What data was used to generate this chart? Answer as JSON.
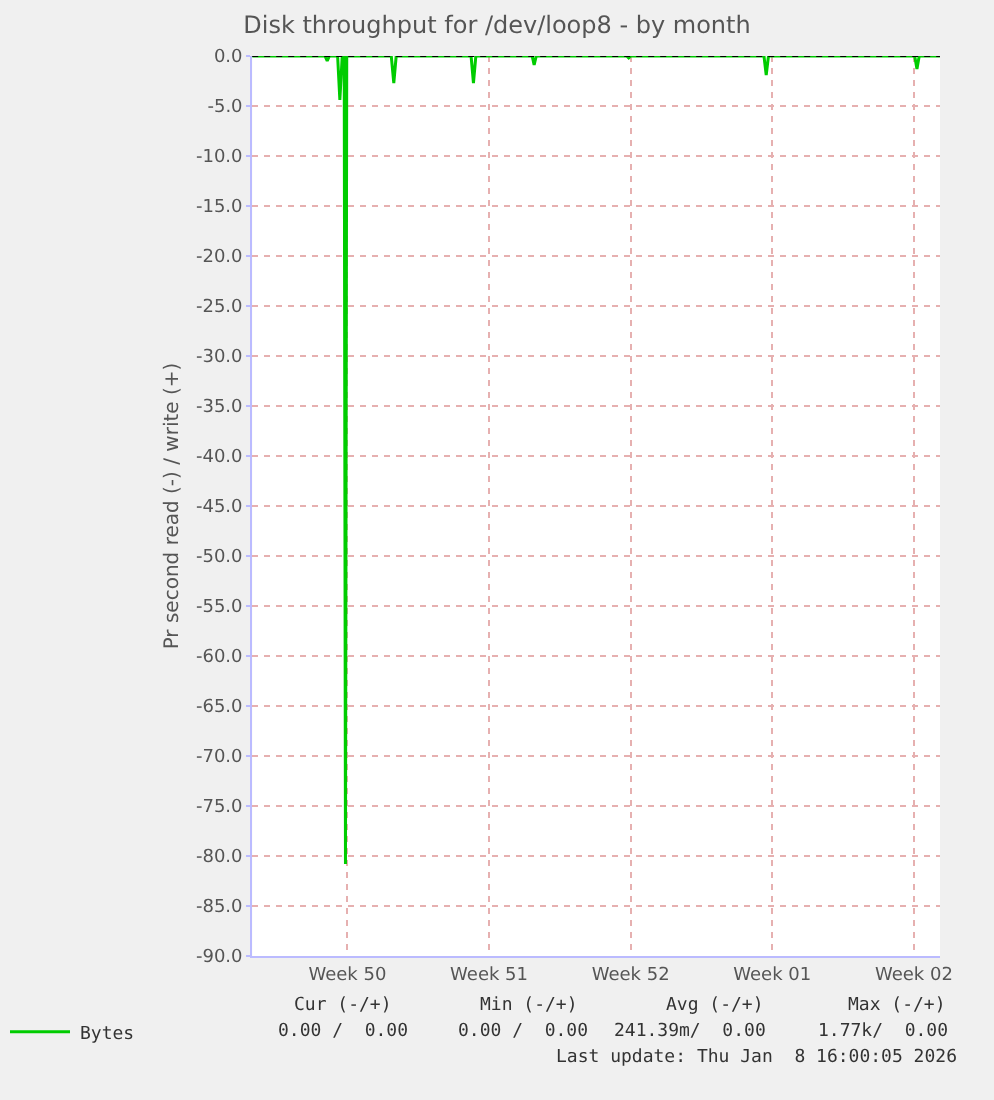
{
  "chart_data": {
    "type": "line",
    "title": "Disk throughput for /dev/loop8 - by month",
    "ylabel": "Pr second read (-) / write (+)",
    "x": [
      "2025-12-06T19:00",
      "2025-12-10T09:20",
      "2025-12-10T12:00",
      "2025-12-10T14:40",
      "2025-12-11T00:20",
      "2025-12-11T03:00",
      "2025-12-11T05:50",
      "2025-12-11T08:10",
      "2025-12-11T09:40",
      "2025-12-11T11:10",
      "2025-12-13T16:00",
      "2025-12-13T19:00",
      "2025-12-13T21:50",
      "2025-12-17T14:40",
      "2025-12-17T17:30",
      "2025-12-17T20:20",
      "2025-12-20T15:10",
      "2025-12-20T17:30",
      "2025-12-20T20:00",
      "2025-12-25T07:10",
      "2025-12-25T09:40",
      "2025-12-25T12:00",
      "2026-01-01T02:10",
      "2026-01-01T04:50",
      "2026-01-01T07:30",
      "2026-01-08T13:00",
      "2026-01-08T15:40",
      "2026-01-08T18:20",
      "2026-01-09T19:00"
    ],
    "series": [
      {
        "name": "Bytes",
        "color": "#00cc00",
        "values": [
          0,
          0,
          -0.5,
          0,
          0,
          -4.4,
          0,
          0,
          -80.8,
          0,
          0,
          -2.7,
          0,
          0,
          -2.7,
          0,
          0,
          -0.9,
          0,
          0,
          -0.2,
          0,
          0,
          -1.9,
          0,
          0,
          -1.3,
          0,
          0
        ]
      }
    ],
    "xlim": [
      "2025-12-06T19:00",
      "2026-01-09T19:00"
    ],
    "xticks": [
      {
        "value": "2025-12-11T12:00",
        "label": "Week 50"
      },
      {
        "value": "2025-12-18T12:00",
        "label": "Week 51"
      },
      {
        "value": "2025-12-25T12:00",
        "label": "Week 52"
      },
      {
        "value": "2026-01-01T12:00",
        "label": "Week 01"
      },
      {
        "value": "2026-01-08T12:00",
        "label": "Week 02"
      }
    ],
    "ylim": [
      -90,
      0
    ],
    "yticks": [
      {
        "value": 0,
        "label": "0.0"
      },
      {
        "value": -5,
        "label": "-5.0"
      },
      {
        "value": -10,
        "label": "-10.0"
      },
      {
        "value": -15,
        "label": "-15.0"
      },
      {
        "value": -20,
        "label": "-20.0"
      },
      {
        "value": -25,
        "label": "-25.0"
      },
      {
        "value": -30,
        "label": "-30.0"
      },
      {
        "value": -35,
        "label": "-35.0"
      },
      {
        "value": -40,
        "label": "-40.0"
      },
      {
        "value": -45,
        "label": "-45.0"
      },
      {
        "value": -50,
        "label": "-50.0"
      },
      {
        "value": -55,
        "label": "-55.0"
      },
      {
        "value": -60,
        "label": "-60.0"
      },
      {
        "value": -65,
        "label": "-65.0"
      },
      {
        "value": -70,
        "label": "-70.0"
      },
      {
        "value": -75,
        "label": "-75.0"
      },
      {
        "value": -80,
        "label": "-80.0"
      },
      {
        "value": -85,
        "label": "-85.0"
      },
      {
        "value": -90,
        "label": "-90.0"
      }
    ],
    "ref_lines": [
      {
        "axis": "y",
        "value": 0,
        "color": "#000000",
        "line_style": "dotted"
      }
    ],
    "grid": true,
    "legend": "bottom left",
    "marker": "none",
    "line_style": "solid",
    "annotations": [
      "Cur (-/+)",
      "Min (-/+)",
      "Avg (-/+)",
      "Max (-/+)",
      "0.00 /  0.00",
      "0.00 /  0.00",
      "241.39m/  0.00",
      "1.77k/  0.00",
      "Last update: Thu Jan  8 16:00:05 2026"
    ]
  }
}
